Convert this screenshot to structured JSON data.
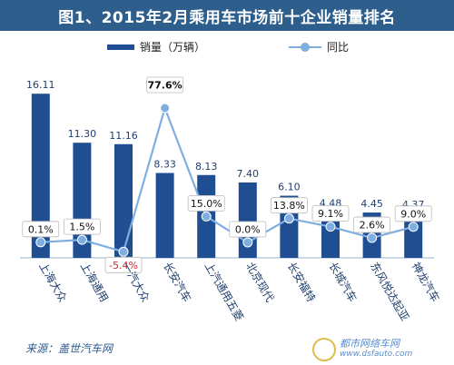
{
  "chart_data": {
    "type": "bar",
    "title": "图1、2015年2月乘用车市场前十企业销量排名",
    "categories": [
      "上海大众",
      "上海通用",
      "一汽大众",
      "长安汽车",
      "上汽通用五菱",
      "北京现代",
      "长安福特",
      "长城汽车",
      "东风悦达起亚",
      "神龙汽车"
    ],
    "series": [
      {
        "name": "销量（万辆）",
        "type": "bar",
        "color": "#1f4e93",
        "values": [
          16.11,
          11.3,
          11.16,
          8.33,
          8.13,
          7.4,
          6.1,
          4.48,
          4.45,
          4.37
        ],
        "labels": [
          "16.11",
          "11.30",
          "11.16",
          "8.33",
          "8.13",
          "7.40",
          "6.10",
          "4.48",
          "4.45",
          "4.37"
        ]
      },
      {
        "name": "同比",
        "type": "line",
        "color": "#7faee0",
        "values": [
          0.1,
          1.5,
          -5.4,
          77.6,
          15.0,
          0.0,
          13.8,
          9.1,
          2.6,
          9.0
        ],
        "labels": [
          "0.1%",
          "1.5%",
          "-5.4%",
          "77.6%",
          "15.0%",
          "0.0%",
          "13.8%",
          "9.1%",
          "2.6%",
          "9.0%"
        ]
      }
    ],
    "legend_position": "top",
    "grid": false
  },
  "source": "来源：盖世汽车网",
  "watermark": {
    "text": "都市网络车网",
    "url": "www.dsfauto.com"
  }
}
